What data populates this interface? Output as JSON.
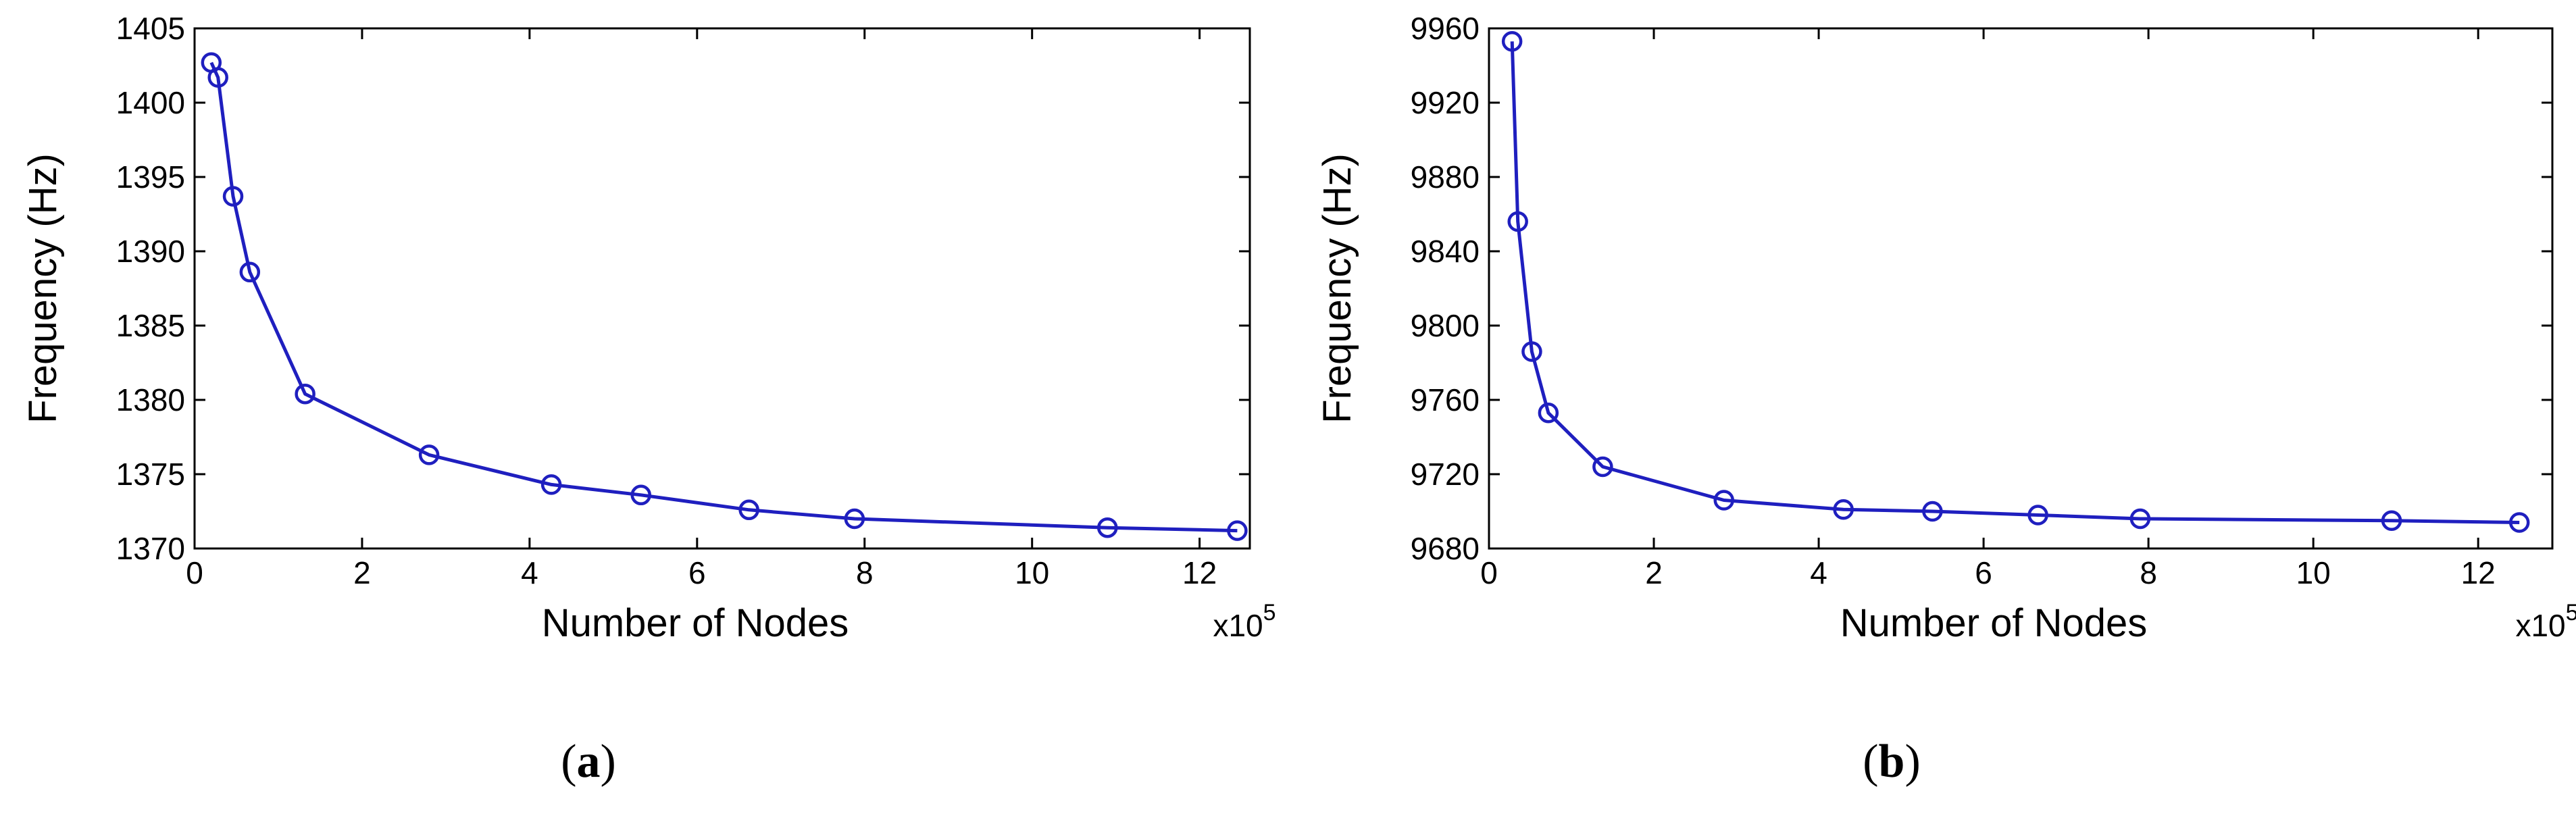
{
  "figure": {
    "panels": [
      {
        "caption_open": "(",
        "caption_letter": "a",
        "caption_close": ")"
      },
      {
        "caption_open": "(",
        "caption_letter": "b",
        "caption_close": ")"
      }
    ]
  },
  "chart_data": [
    {
      "type": "line",
      "title": "",
      "xlabel": "Number of Nodes",
      "ylabel": "Frequency (Hz)",
      "x_multiplier_label": "x10",
      "x_multiplier_exponent": "5",
      "xlim": [
        0,
        12.6
      ],
      "ylim": [
        1370,
        1405
      ],
      "xticks": [
        0,
        2,
        4,
        6,
        8,
        10,
        12
      ],
      "xtick_labels": [
        "0",
        "2",
        "4",
        "6",
        "8",
        "10",
        "12"
      ],
      "yticks": [
        1370,
        1375,
        1380,
        1385,
        1390,
        1395,
        1400,
        1405
      ],
      "ytick_labels": [
        "1370",
        "1375",
        "1380",
        "1385",
        "1390",
        "1395",
        "1400",
        "1405"
      ],
      "grid": false,
      "marker": "circle",
      "color": "#1f1fbf",
      "series": [
        {
          "x": [
            0.2,
            0.28,
            0.46,
            0.66,
            1.32,
            2.8,
            4.26,
            5.33,
            6.62,
            7.88,
            10.9,
            12.45
          ],
          "y": [
            1402.7,
            1401.7,
            1393.7,
            1388.6,
            1380.4,
            1376.3,
            1374.3,
            1373.6,
            1372.6,
            1372.0,
            1371.4,
            1371.2
          ]
        }
      ]
    },
    {
      "type": "line",
      "title": "",
      "xlabel": "Number of Nodes",
      "ylabel": "Frequency (Hz)",
      "x_multiplier_label": "x10",
      "x_multiplier_exponent": "5",
      "xlim": [
        0,
        12.9
      ],
      "ylim": [
        9680,
        9960
      ],
      "xticks": [
        0,
        2,
        4,
        6,
        8,
        10,
        12
      ],
      "xtick_labels": [
        "0",
        "2",
        "4",
        "6",
        "8",
        "10",
        "12"
      ],
      "yticks": [
        9680,
        9720,
        9760,
        9800,
        9840,
        9880,
        9920,
        9960
      ],
      "ytick_labels": [
        "9680",
        "9720",
        "9760",
        "9800",
        "9840",
        "9880",
        "9920",
        "9960"
      ],
      "grid": false,
      "marker": "circle",
      "color": "#1f1fbf",
      "series": [
        {
          "x": [
            0.28,
            0.35,
            0.52,
            0.72,
            1.38,
            2.85,
            4.3,
            5.38,
            6.66,
            7.9,
            10.95,
            12.5
          ],
          "y": [
            9953,
            9856,
            9786,
            9753,
            9724,
            9706,
            9701,
            9700,
            9698,
            9696,
            9695,
            9694
          ]
        }
      ]
    }
  ]
}
